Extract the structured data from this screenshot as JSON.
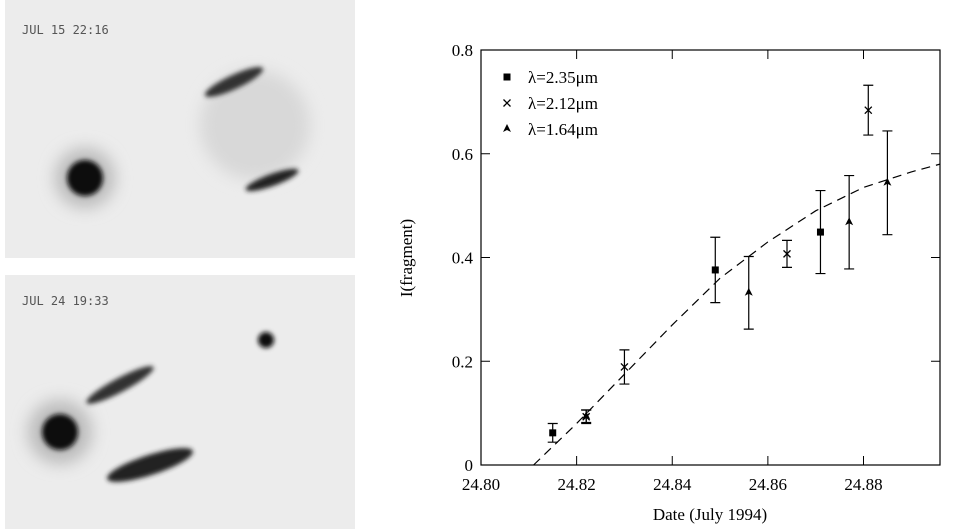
{
  "panels": [
    {
      "label": "JUL 15   22:16"
    },
    {
      "label": "JUL 24   19:33"
    }
  ],
  "chart_data": {
    "type": "errorbar",
    "xlabel": "Date (July 1994)",
    "ylabel": "I(fragment)",
    "xlim": [
      24.8,
      24.896
    ],
    "ylim": [
      0,
      0.8
    ],
    "xticks": [
      {
        "value": 24.8,
        "label": "24.80"
      },
      24.82,
      24.84,
      24.86,
      24.88
    ],
    "yticks": [
      0,
      0.2,
      0.4,
      0.6,
      0.8
    ],
    "series": [
      {
        "name": "λ=2.35μm",
        "marker": "square",
        "color": "#000000",
        "x": [
          24.815,
          24.849,
          24.871
        ],
        "values": [
          0.062,
          0.376,
          0.449
        ],
        "errors": [
          0.018,
          0.063,
          0.08
        ]
      },
      {
        "name": "λ=2.12μm",
        "marker": "cross",
        "color": "#000000",
        "x": [
          24.822,
          24.83,
          24.864,
          24.881
        ],
        "values": [
          0.093,
          0.189,
          0.407,
          0.684
        ],
        "errors": [
          0.013,
          0.033,
          0.026,
          0.048
        ]
      },
      {
        "name": "λ=1.64μm",
        "marker": "triangle",
        "color": "#000000",
        "x": [
          24.822,
          24.856,
          24.877,
          24.885
        ],
        "values": [
          0.094,
          0.332,
          0.468,
          0.544
        ],
        "errors": [
          0.012,
          0.07,
          0.09,
          0.1
        ]
      }
    ],
    "fit": {
      "x": [
        24.811,
        24.82,
        24.83,
        24.84,
        24.85,
        24.86,
        24.87,
        24.88,
        24.89,
        24.896
      ],
      "values": [
        0,
        0.08,
        0.175,
        0.27,
        0.36,
        0.43,
        0.49,
        0.535,
        0.565,
        0.58
      ]
    }
  }
}
